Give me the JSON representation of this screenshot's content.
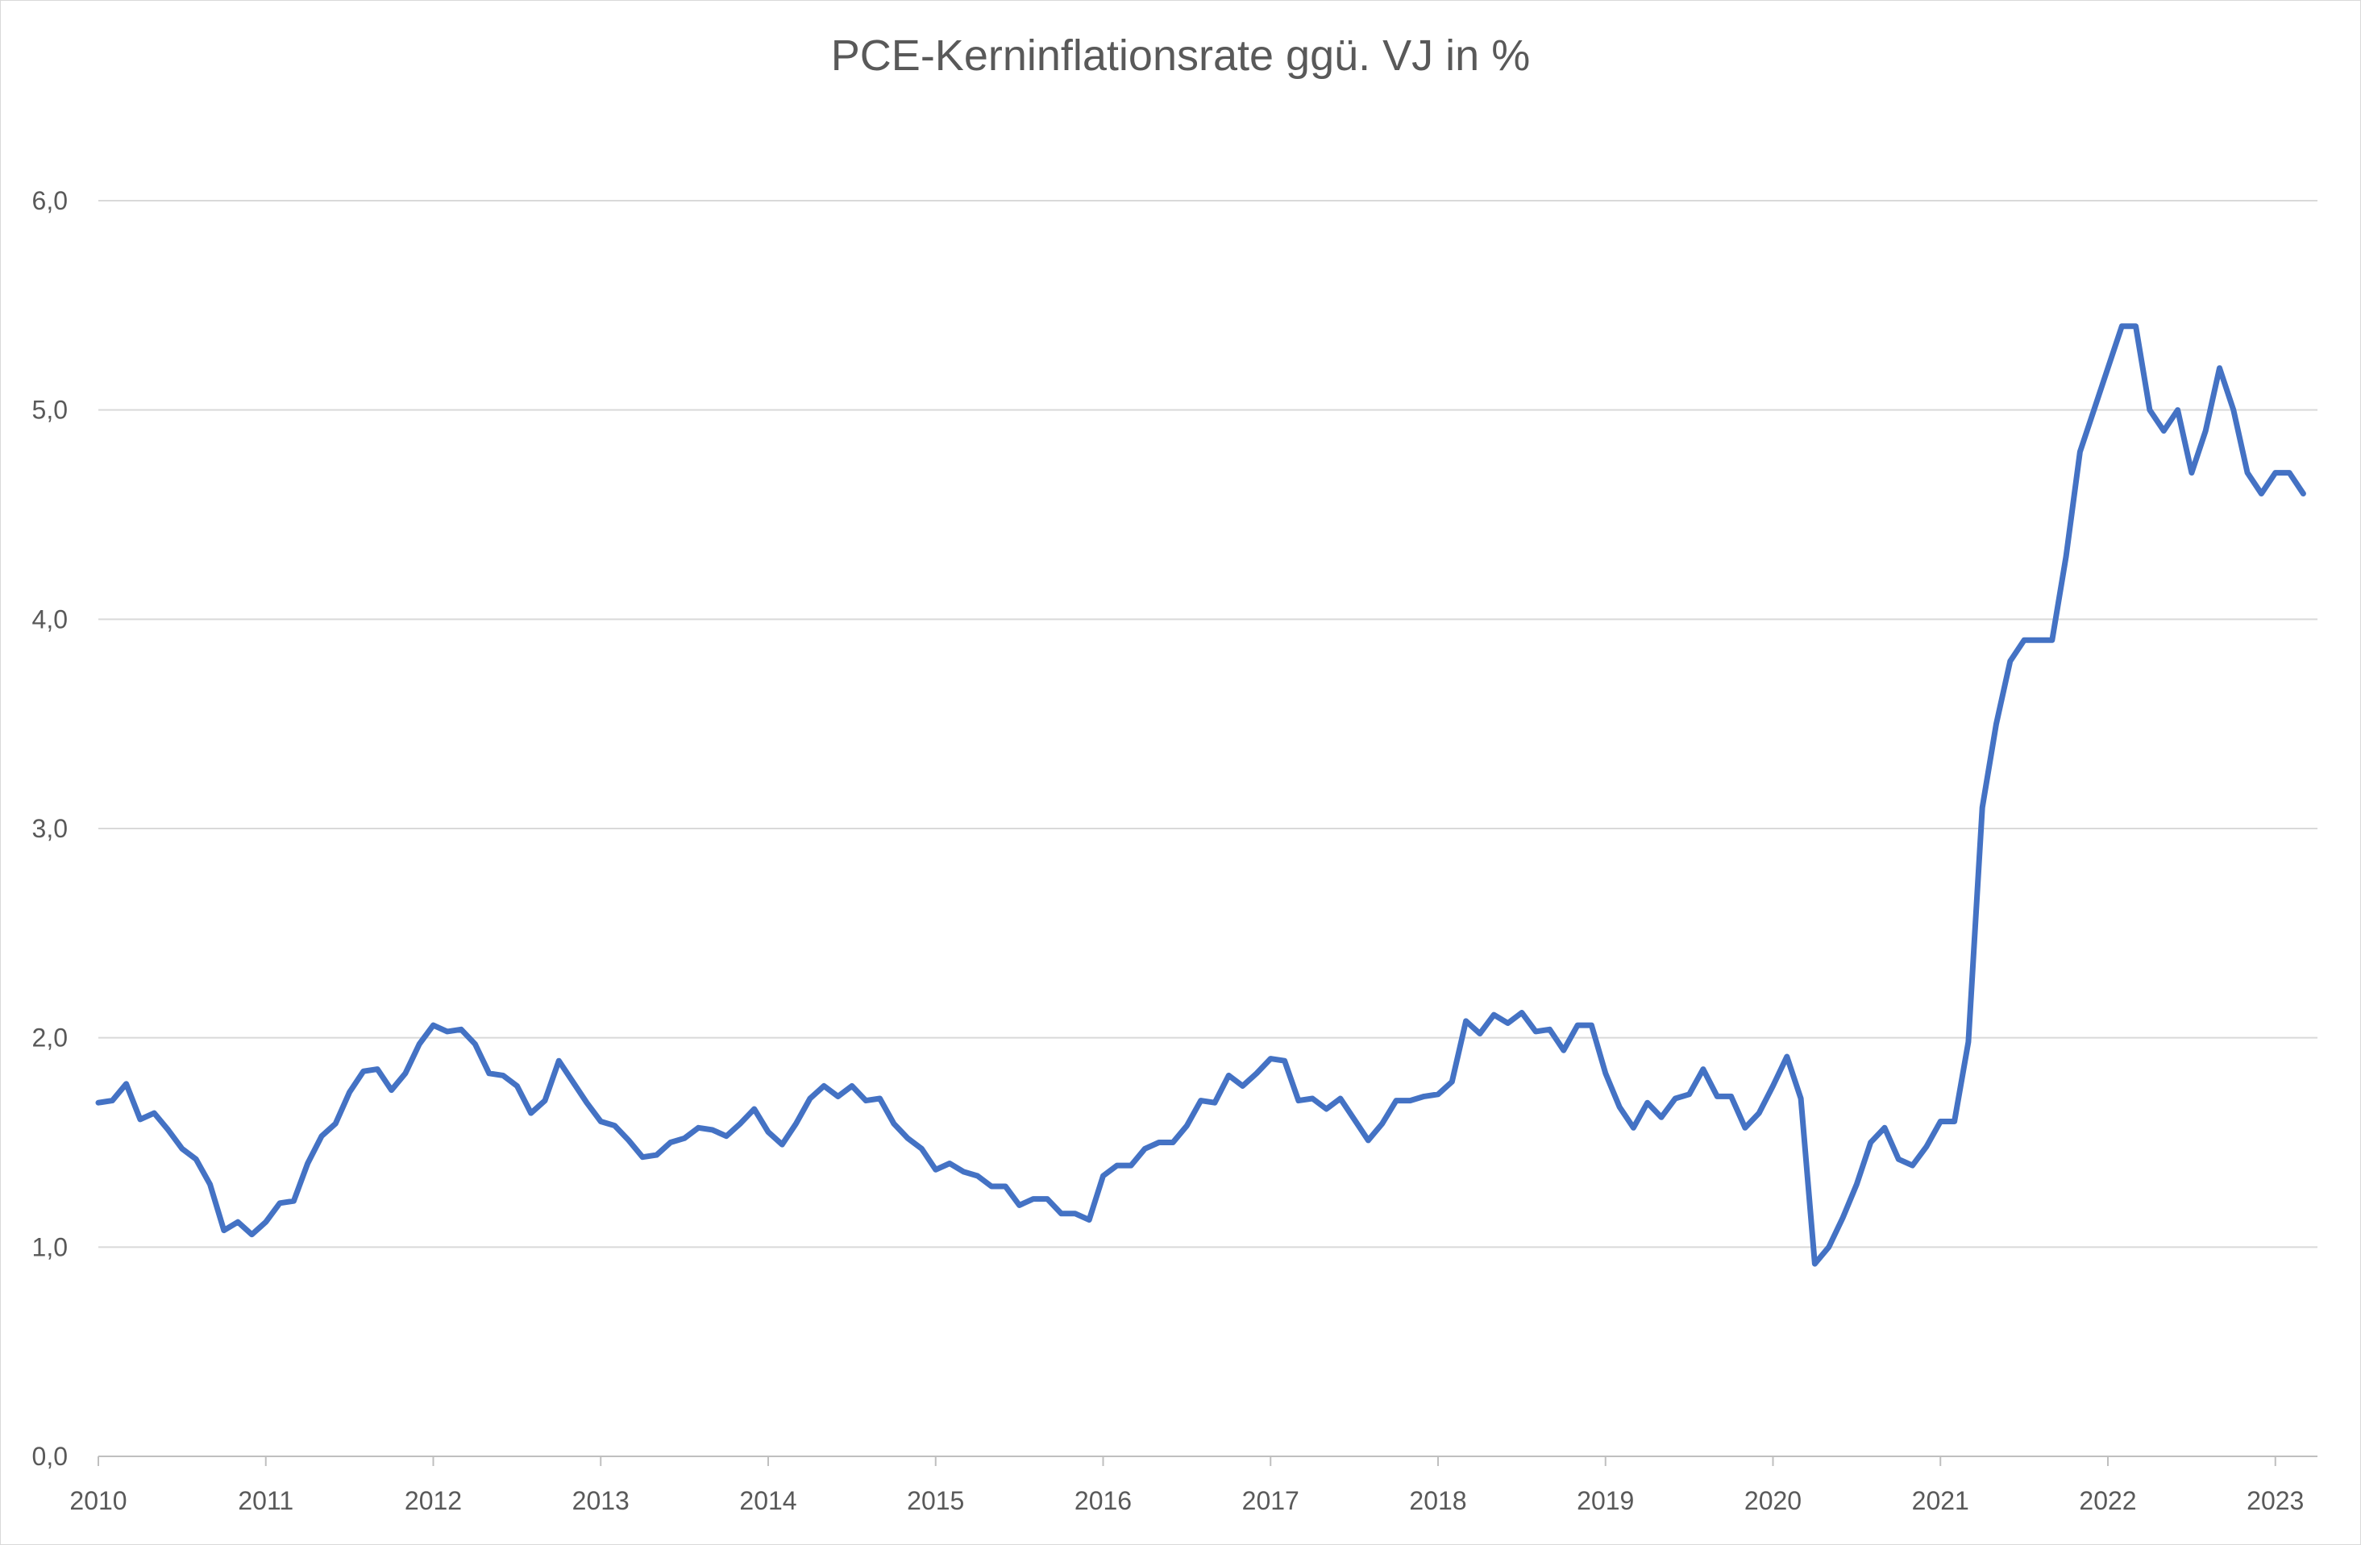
{
  "chart_data": {
    "type": "line",
    "title": "PCE-Kerninflationsrate ggü. VJ in %",
    "xlabel": "",
    "ylabel": "",
    "ylim": [
      0,
      6
    ],
    "y_ticks": [
      "0,0",
      "1,0",
      "2,0",
      "3,0",
      "4,0",
      "5,0",
      "6,0"
    ],
    "x_ticks": [
      "2010",
      "2011",
      "2012",
      "2013",
      "2014",
      "2015",
      "2016",
      "2017",
      "2018",
      "2019",
      "2020",
      "2021",
      "2022",
      "2023"
    ],
    "grid": true,
    "legend": "none",
    "color": "#4472c4",
    "series": [
      {
        "x": [
          "2010-01",
          "2010-02",
          "2010-03",
          "2010-04",
          "2010-05",
          "2010-06",
          "2010-07",
          "2010-08",
          "2010-09",
          "2010-10",
          "2010-11",
          "2010-12",
          "2011-01",
          "2011-02",
          "2011-03",
          "2011-04",
          "2011-05",
          "2011-06",
          "2011-07",
          "2011-08",
          "2011-09",
          "2011-10",
          "2011-11",
          "2011-12",
          "2012-01",
          "2012-02",
          "2012-03",
          "2012-04",
          "2012-05",
          "2012-06",
          "2012-07",
          "2012-08",
          "2012-09",
          "2012-10",
          "2012-11",
          "2012-12",
          "2013-01",
          "2013-02",
          "2013-03",
          "2013-04",
          "2013-05",
          "2013-06",
          "2013-07",
          "2013-08",
          "2013-09",
          "2013-10",
          "2013-11",
          "2013-12",
          "2014-01",
          "2014-02",
          "2014-03",
          "2014-04",
          "2014-05",
          "2014-06",
          "2014-07",
          "2014-08",
          "2014-09",
          "2014-10",
          "2014-11",
          "2014-12",
          "2015-01",
          "2015-02",
          "2015-03",
          "2015-04",
          "2015-05",
          "2015-06",
          "2015-07",
          "2015-08",
          "2015-09",
          "2015-10",
          "2015-11",
          "2015-12",
          "2016-01",
          "2016-02",
          "2016-03",
          "2016-04",
          "2016-05",
          "2016-06",
          "2016-07",
          "2016-08",
          "2016-09",
          "2016-10",
          "2016-11",
          "2016-12",
          "2017-01",
          "2017-02",
          "2017-03",
          "2017-04",
          "2017-05",
          "2017-06",
          "2017-07",
          "2017-08",
          "2017-09",
          "2017-10",
          "2017-11",
          "2017-12",
          "2018-01",
          "2018-02",
          "2018-03",
          "2018-04",
          "2018-05",
          "2018-06",
          "2018-07",
          "2018-08",
          "2018-09",
          "2018-10",
          "2018-11",
          "2018-12",
          "2019-01",
          "2019-02",
          "2019-03",
          "2019-04",
          "2019-05",
          "2019-06",
          "2019-07",
          "2019-08",
          "2019-09",
          "2019-10",
          "2019-11",
          "2019-12",
          "2020-01",
          "2020-02",
          "2020-03",
          "2020-04",
          "2020-05",
          "2020-06",
          "2020-07",
          "2020-08",
          "2020-09",
          "2020-10",
          "2020-11",
          "2020-12",
          "2021-01",
          "2021-02",
          "2021-03",
          "2021-04",
          "2021-05",
          "2021-06",
          "2021-07",
          "2021-08",
          "2021-09",
          "2021-10",
          "2021-11",
          "2021-12",
          "2022-01",
          "2022-02",
          "2022-03",
          "2022-04",
          "2022-05",
          "2022-06",
          "2022-07",
          "2022-08",
          "2022-09",
          "2022-10",
          "2022-11",
          "2022-12",
          "2023-01",
          "2023-02",
          "2023-03"
        ],
        "values": [
          1.69,
          1.7,
          1.78,
          1.61,
          1.64,
          1.56,
          1.47,
          1.42,
          1.3,
          1.08,
          1.12,
          1.06,
          1.12,
          1.21,
          1.22,
          1.4,
          1.53,
          1.59,
          1.74,
          1.84,
          1.85,
          1.75,
          1.83,
          1.97,
          2.06,
          2.03,
          2.04,
          1.97,
          1.83,
          1.82,
          1.77,
          1.64,
          1.7,
          1.89,
          1.79,
          1.69,
          1.6,
          1.58,
          1.51,
          1.43,
          1.44,
          1.5,
          1.52,
          1.57,
          1.56,
          1.53,
          1.59,
          1.66,
          1.55,
          1.49,
          1.59,
          1.71,
          1.77,
          1.72,
          1.77,
          1.7,
          1.71,
          1.59,
          1.52,
          1.47,
          1.37,
          1.4,
          1.36,
          1.34,
          1.29,
          1.29,
          1.2,
          1.23,
          1.23,
          1.16,
          1.16,
          1.13,
          1.34,
          1.39,
          1.39,
          1.47,
          1.5,
          1.5,
          1.58,
          1.7,
          1.69,
          1.82,
          1.77,
          1.83,
          1.9,
          1.89,
          1.7,
          1.71,
          1.66,
          1.71,
          1.61,
          1.51,
          1.59,
          1.7,
          1.7,
          1.72,
          1.73,
          1.79,
          2.08,
          2.02,
          2.11,
          2.07,
          2.12,
          2.03,
          2.04,
          1.94,
          2.06,
          2.06,
          1.83,
          1.67,
          1.57,
          1.69,
          1.62,
          1.71,
          1.73,
          1.85,
          1.72,
          1.72,
          1.57,
          1.64,
          1.77,
          1.91,
          1.71,
          0.92,
          1.0,
          1.14,
          1.3,
          1.5,
          1.57,
          1.42,
          1.39,
          1.48,
          1.6,
          1.6,
          1.98,
          3.1,
          3.5,
          3.8,
          3.9,
          3.9,
          3.9,
          4.3,
          4.8,
          5.0,
          5.2,
          5.4,
          5.4,
          5.0,
          4.9,
          5.0,
          4.7,
          4.9,
          5.2,
          5.0,
          4.7,
          4.6,
          4.7,
          4.7,
          4.6
        ]
      }
    ]
  }
}
